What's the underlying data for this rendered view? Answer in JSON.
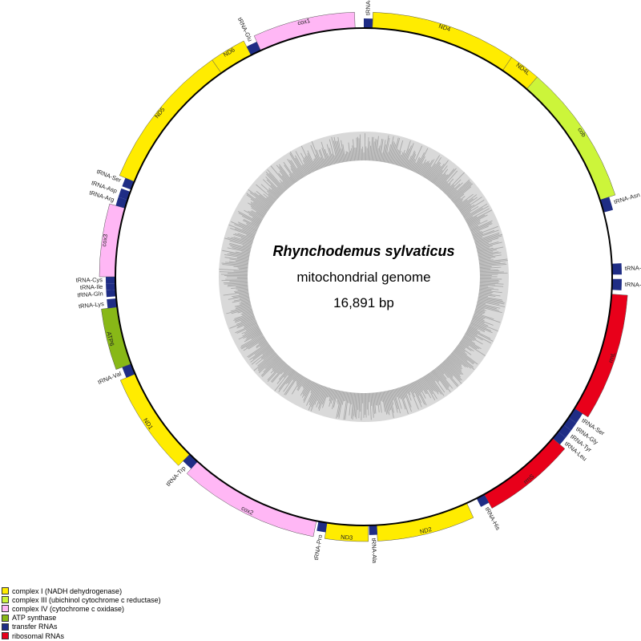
{
  "center": {
    "species": "Rhynchodemus sylvaticus",
    "genome_type": "mitochondrial genome",
    "length": "16,891 bp"
  },
  "colors": {
    "complex1": "#ffec00",
    "complex3": "#ccf53a",
    "complex4": "#ffb7f5",
    "atp": "#88b817",
    "trna": "#1f2d85",
    "rrna": "#e8001a"
  },
  "legend": [
    {
      "key": "complex1",
      "label": "complex I (NADH dehydrogenase)"
    },
    {
      "key": "complex3",
      "label": "complex III (ubichinol cytochrome c reductase)"
    },
    {
      "key": "complex4",
      "label": "complex IV (cytochrome c oxidase)"
    },
    {
      "key": "atp",
      "label": "ATP synthase"
    },
    {
      "key": "trna",
      "label": "transfer RNAs"
    },
    {
      "key": "rrna",
      "label": "ribosomal RNAs"
    }
  ],
  "chart_data": {
    "type": "circular-genome-map",
    "genome_length_bp": 16891,
    "genes": [
      {
        "name": "tRNA-Phe",
        "type": "trna",
        "strand": "outer",
        "start_deg": 0,
        "end_deg": 2.0
      },
      {
        "name": "ND4",
        "type": "complex1",
        "strand": "outer",
        "start_deg": 2.0,
        "end_deg": 34.0
      },
      {
        "name": "ND4L",
        "type": "complex1",
        "strand": "outer",
        "start_deg": 34.0,
        "end_deg": 41.0
      },
      {
        "name": "cob",
        "type": "complex3",
        "strand": "outer",
        "start_deg": 41.0,
        "end_deg": 72.0
      },
      {
        "name": "tRNA-Asn",
        "type": "trna",
        "strand": "outer",
        "start_deg": 72.0,
        "end_deg": 75.0
      },
      {
        "name": "tRNA-Met",
        "type": "trna",
        "strand": "outer",
        "start_deg": 87.0,
        "end_deg": 89.5
      },
      {
        "name": "tRNA-Leu",
        "type": "trna",
        "strand": "outer",
        "start_deg": 90.5,
        "end_deg": 93.0
      },
      {
        "name": "rrnL",
        "type": "rrna",
        "strand": "outer",
        "start_deg": 94.0,
        "end_deg": 122.0
      },
      {
        "name": "tRNA-Ser",
        "type": "trna",
        "strand": "outer",
        "start_deg": 122.0,
        "end_deg": 124.5
      },
      {
        "name": "tRNA-Gly",
        "type": "trna",
        "strand": "outer",
        "start_deg": 124.5,
        "end_deg": 126.5
      },
      {
        "name": "tRNA-Tyr",
        "type": "trna",
        "strand": "outer",
        "start_deg": 126.5,
        "end_deg": 128.5
      },
      {
        "name": "tRNA-Leu",
        "type": "trna",
        "strand": "outer",
        "start_deg": 128.5,
        "end_deg": 130.5
      },
      {
        "name": "rrnS",
        "type": "rrna",
        "strand": "outer",
        "start_deg": 130.5,
        "end_deg": 151.0
      },
      {
        "name": "tRNA-His",
        "type": "trna",
        "strand": "outer",
        "start_deg": 151.0,
        "end_deg": 153.0
      },
      {
        "name": "ND2",
        "type": "complex1",
        "strand": "outer",
        "start_deg": 155.5,
        "end_deg": 177.0
      },
      {
        "name": "tRNA-Ala",
        "type": "trna",
        "strand": "outer",
        "start_deg": 177.0,
        "end_deg": 178.8
      },
      {
        "name": "ND3",
        "type": "complex1",
        "strand": "outer",
        "start_deg": 179.0,
        "end_deg": 188.5
      },
      {
        "name": "tRNA-Pro",
        "type": "trna",
        "strand": "outer",
        "start_deg": 188.5,
        "end_deg": 190.5
      },
      {
        "name": "cox2",
        "type": "complex4",
        "strand": "outer",
        "start_deg": 191.0,
        "end_deg": 222.0
      },
      {
        "name": "tRNA-Trp",
        "type": "trna",
        "strand": "outer",
        "start_deg": 222.0,
        "end_deg": 224.5
      },
      {
        "name": "ND1",
        "type": "complex1",
        "strand": "outer",
        "start_deg": 224.5,
        "end_deg": 247.0
      },
      {
        "name": "tRNA-Val",
        "type": "trna",
        "strand": "outer",
        "start_deg": 247.0,
        "end_deg": 249.5
      },
      {
        "name": "ATP6",
        "type": "atp",
        "strand": "outer",
        "start_deg": 249.5,
        "end_deg": 263.0
      },
      {
        "name": "tRNA-Lys",
        "type": "trna",
        "strand": "outer",
        "start_deg": 263.0,
        "end_deg": 265.0
      },
      {
        "name": "tRNA-Gln",
        "type": "trna",
        "strand": "outer",
        "start_deg": 265.5,
        "end_deg": 267.0
      },
      {
        "name": "tRNA-Ile",
        "type": "trna",
        "strand": "outer",
        "start_deg": 267.0,
        "end_deg": 268.5
      },
      {
        "name": "tRNA-Cys",
        "type": "trna",
        "strand": "outer",
        "start_deg": 268.5,
        "end_deg": 270.0
      },
      {
        "name": "cox3",
        "type": "complex4",
        "strand": "outer",
        "start_deg": 270.0,
        "end_deg": 286.0
      },
      {
        "name": "tRNA-Arg",
        "type": "trna",
        "strand": "outer",
        "start_deg": 286.0,
        "end_deg": 288.0
      },
      {
        "name": "tRNA-Asp",
        "type": "trna",
        "strand": "outer",
        "start_deg": 288.0,
        "end_deg": 290.0
      },
      {
        "name": "tRNA-Ser",
        "type": "trna",
        "strand": "outer",
        "start_deg": 290.5,
        "end_deg": 292.5
      },
      {
        "name": "ND5",
        "type": "complex1",
        "strand": "outer",
        "start_deg": 292.5,
        "end_deg": 325.0
      },
      {
        "name": "ND6",
        "type": "complex1",
        "strand": "outer",
        "start_deg": 325.0,
        "end_deg": 333.0
      },
      {
        "name": "tRNA-Glu",
        "type": "trna",
        "strand": "outer",
        "start_deg": 333.0,
        "end_deg": 335.5
      },
      {
        "name": "cox1",
        "type": "complex4",
        "strand": "outer",
        "start_deg": 335.5,
        "end_deg": 358.0
      }
    ]
  }
}
